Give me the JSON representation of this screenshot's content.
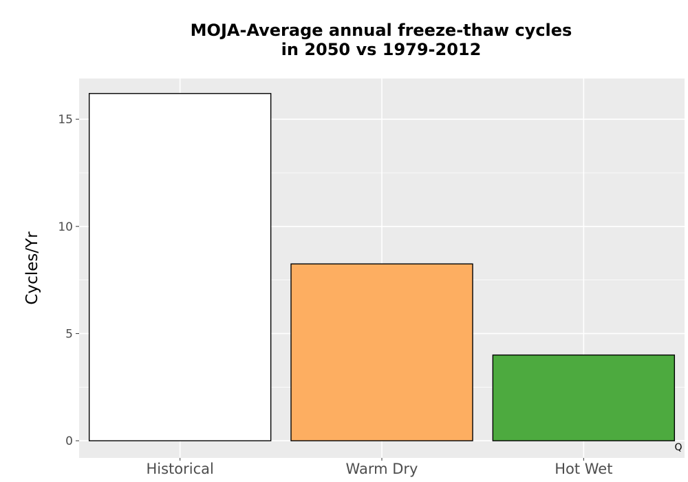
{
  "chart_data": {
    "type": "bar",
    "title_lines": [
      "MOJA-Average annual freeze-thaw cycles",
      "in 2050 vs 1979-2012"
    ],
    "xlabel": "",
    "ylabel": "Cycles/Yr",
    "categories": [
      "Historical",
      "Warm Dry",
      "Hot Wet"
    ],
    "values": [
      16.2,
      8.25,
      4.0
    ],
    "colors": [
      "#ffffff",
      "#fdae61",
      "#4daa3f"
    ],
    "ylim": [
      -0.8,
      16.9
    ],
    "yticks": [
      0,
      5,
      10,
      15
    ],
    "grid": true,
    "panel_background": "#ebebeb",
    "bar_outline": "#000000",
    "annotation": "Q"
  }
}
